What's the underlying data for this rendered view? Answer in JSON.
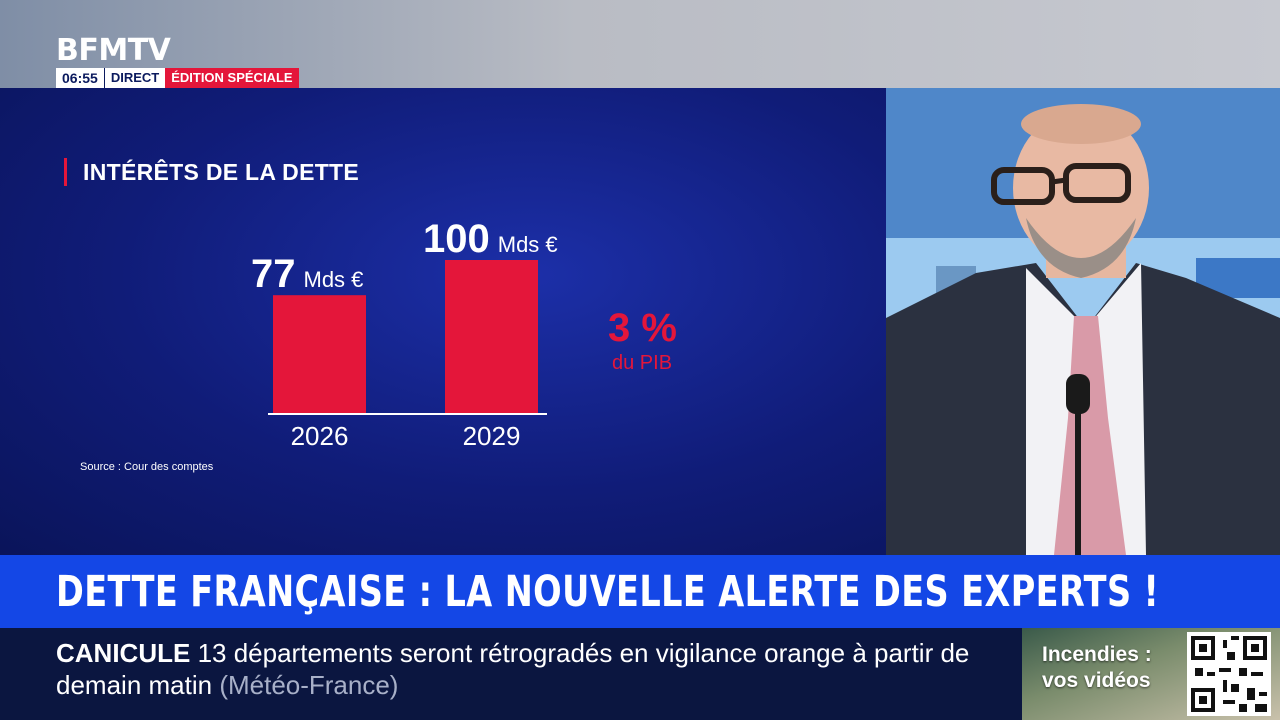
{
  "channel": {
    "logo": "BFMTV",
    "time": "06:55",
    "live_label": "DIRECT",
    "edition_label": "ÉDITION SPÉCIALE"
  },
  "colors": {
    "accent": "#e4163a",
    "panel": "#101c78",
    "headline_band": "#1447e6",
    "ticker_band": "#0b1640"
  },
  "chart_data": {
    "type": "bar",
    "title": "INTÉRÊTS DE LA DETTE",
    "categories": [
      "2026",
      "2029"
    ],
    "values": [
      77,
      100
    ],
    "value_labels": [
      "77",
      "100"
    ],
    "unit": "Mds €",
    "ylim": [
      0,
      100
    ],
    "grid": false,
    "annotation": {
      "value": "3 %",
      "caption": "du PIB"
    },
    "source": "Source : Cour des comptes"
  },
  "headline": "DETTE FRANÇAISE : LA NOUVELLE ALERTE DES EXPERTS !",
  "ticker": {
    "label": "CANICULE",
    "text": "13 départements seront rétrogradés en vigilance orange à partir de demain matin",
    "source": "(Météo-France)"
  },
  "promo": {
    "line1": "Incendies :",
    "line2": "vos vidéos",
    "icon": "qr-code-icon"
  }
}
